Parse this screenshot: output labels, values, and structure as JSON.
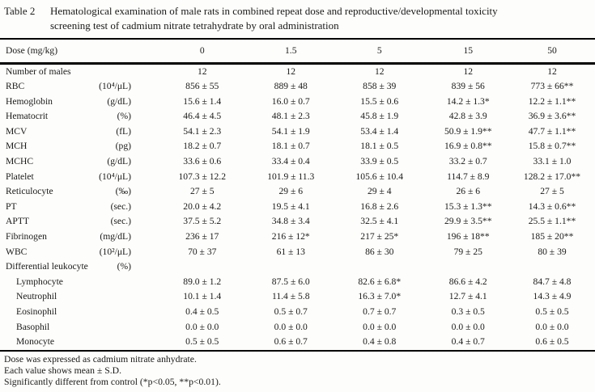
{
  "caption": {
    "label": "Table 2",
    "title_lines": [
      "Hematological examination of male rats in combined repeat dose and reproductive/developmental toxicity",
      "screening test of cadmium nitrate tetrahydrate by oral administration"
    ]
  },
  "table": {
    "dose_label": "Dose (mg/kg)",
    "doses": [
      "0",
      "1.5",
      "5",
      "15",
      "50"
    ],
    "rows": [
      {
        "label": "Number of males",
        "unit": "",
        "values": [
          "12",
          "12",
          "12",
          "12",
          "12"
        ]
      },
      {
        "label": "RBC",
        "unit": "(10⁴/μL)",
        "values": [
          "856 ± 55",
          "889 ± 48",
          "858 ± 39",
          "839 ± 56",
          "773 ± 66**"
        ]
      },
      {
        "label": "Hemoglobin",
        "unit": "(g/dL)",
        "values": [
          "15.6 ± 1.4",
          "16.0 ± 0.7",
          "15.5 ± 0.6",
          "14.2 ± 1.3*",
          "12.2 ± 1.1**"
        ]
      },
      {
        "label": "Hematocrit",
        "unit": "(%)",
        "values": [
          "46.4 ± 4.5",
          "48.1 ± 2.3",
          "45.8 ± 1.9",
          "42.8 ± 3.9",
          "36.9 ± 3.6**"
        ]
      },
      {
        "label": "MCV",
        "unit": "(fL)",
        "values": [
          "54.1 ± 2.3",
          "54.1 ± 1.9",
          "53.4 ± 1.4",
          "50.9 ± 1.9**",
          "47.7 ± 1.1**"
        ]
      },
      {
        "label": "MCH",
        "unit": "(pg)",
        "values": [
          "18.2 ± 0.7",
          "18.1 ± 0.7",
          "18.1 ± 0.5",
          "16.9 ± 0.8**",
          "15.8 ± 0.7**"
        ]
      },
      {
        "label": "MCHC",
        "unit": "(g/dL)",
        "values": [
          "33.6 ± 0.6",
          "33.4 ± 0.4",
          "33.9 ± 0.5",
          "33.2 ± 0.7",
          "33.1 ± 1.0"
        ]
      },
      {
        "label": "Platelet",
        "unit": "(10⁴/μL)",
        "values": [
          "107.3 ± 12.2",
          "101.9 ± 11.3",
          "105.6 ± 10.4",
          "114.7 ± 8.9",
          "128.2 ± 17.0**"
        ]
      },
      {
        "label": "Reticulocyte",
        "unit": "(‰)",
        "values": [
          "27 ± 5",
          "29 ± 6",
          "29 ± 4",
          "26 ± 6",
          "27 ± 5"
        ]
      },
      {
        "label": "PT",
        "unit": "(sec.)",
        "values": [
          "20.0 ± 4.2",
          "19.5 ± 4.1",
          "16.8 ± 2.6",
          "15.3 ± 1.3**",
          "14.3 ± 0.6**"
        ]
      },
      {
        "label": "APTT",
        "unit": "(sec.)",
        "values": [
          "37.5 ± 5.2",
          "34.8 ± 3.4",
          "32.5 ± 4.1",
          "29.9 ± 3.5**",
          "25.5 ± 1.1**"
        ]
      },
      {
        "label": "Fibrinogen",
        "unit": "(mg/dL)",
        "values": [
          "236 ± 17",
          "216 ± 12*",
          "217 ± 25*",
          "196 ± 18**",
          "185 ± 20**"
        ]
      },
      {
        "label": "WBC",
        "unit": "(10²/μL)",
        "values": [
          "70 ± 37",
          "61 ± 13",
          "86 ± 30",
          "79 ± 25",
          "80 ± 39"
        ]
      },
      {
        "label": "Differential leukocyte",
        "unit": "(%)",
        "values": [
          "",
          "",
          "",
          "",
          ""
        ]
      },
      {
        "label": "Lymphocyte",
        "unit": "",
        "indent": true,
        "values": [
          "89.0 ± 1.2",
          "87.5 ± 6.0",
          "82.6 ± 6.8*",
          "86.6 ± 4.2",
          "84.7 ± 4.8"
        ]
      },
      {
        "label": "Neutrophil",
        "unit": "",
        "indent": true,
        "values": [
          "10.1 ± 1.4",
          "11.4 ± 5.8",
          "16.3 ± 7.0*",
          "12.7 ± 4.1",
          "14.3 ± 4.9"
        ]
      },
      {
        "label": "Eosinophil",
        "unit": "",
        "indent": true,
        "values": [
          "0.4 ± 0.5",
          "0.5 ± 0.7",
          "0.7 ± 0.7",
          "0.3 ± 0.5",
          "0.5 ± 0.5"
        ]
      },
      {
        "label": "Basophil",
        "unit": "",
        "indent": true,
        "values": [
          "0.0 ± 0.0",
          "0.0 ± 0.0",
          "0.0 ± 0.0",
          "0.0 ± 0.0",
          "0.0 ± 0.0"
        ]
      },
      {
        "label": "Monocyte",
        "unit": "",
        "indent": true,
        "values": [
          "0.5 ± 0.5",
          "0.6 ± 0.7",
          "0.4 ± 0.8",
          "0.4 ± 0.7",
          "0.6 ± 0.5"
        ]
      }
    ]
  },
  "footnotes": [
    "Dose was expressed as cadmium nitrate anhydrate.",
    "Each value shows mean ± S.D.",
    "Significantly different from control (*p<0.05, **p<0.01)."
  ]
}
